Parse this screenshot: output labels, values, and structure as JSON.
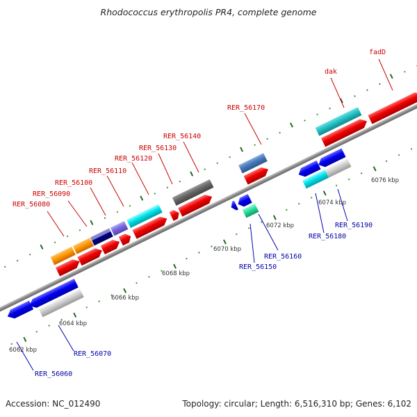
{
  "title": "Rhodococcus erythropolis PR4, complete genome",
  "footer": {
    "accession": "Accession: NC_012490",
    "summary": "Topology: circular; Length: 6,516,310 bp; Genes: 6,102"
  },
  "colors": {
    "forward_label": "#cc0000",
    "reverse_label": "#0000aa",
    "backbone": "#888888",
    "tick_dot": "#339933",
    "tick_major": "#226622"
  },
  "scale_labels": [
    {
      "text": "6062 kbp"
    },
    {
      "text": "6064 kbp"
    },
    {
      "text": "6066 kbp"
    },
    {
      "text": "6068 kbp"
    },
    {
      "text": "6070 kbp"
    },
    {
      "text": "6072 kbp"
    },
    {
      "text": "6074 kbp"
    },
    {
      "text": "6076 kbp"
    }
  ],
  "gene_labels_forward": [
    {
      "text": "RER_56080"
    },
    {
      "text": "RER_56090"
    },
    {
      "text": "RER_56100"
    },
    {
      "text": "RER_56110"
    },
    {
      "text": "RER_56120"
    },
    {
      "text": "RER_56130"
    },
    {
      "text": "RER_56140"
    },
    {
      "text": "RER_56170"
    },
    {
      "text": "dak"
    },
    {
      "text": "fadD"
    }
  ],
  "gene_labels_reverse": [
    {
      "text": "RER_56060"
    },
    {
      "text": "RER_56070"
    },
    {
      "text": "RER_56150"
    },
    {
      "text": "RER_56160"
    },
    {
      "text": "RER_56180"
    },
    {
      "text": "RER_56190"
    }
  ]
}
